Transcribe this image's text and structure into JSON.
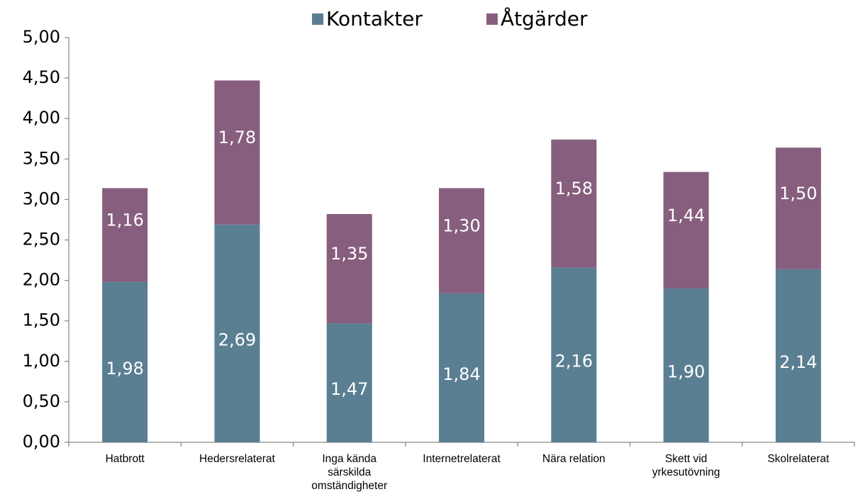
{
  "chart_data": {
    "type": "stacked_bar",
    "categories": [
      "Hatbrott",
      "Hedersrelaterat",
      "Inga kända\nsärskilda\nomständigheter",
      "Internetrelaterat",
      "Nära relation",
      "Skett vid\nyrkesutövning",
      "Skolrelaterat"
    ],
    "series": [
      {
        "name": "Kontakter",
        "color": "#5b7f92",
        "values": [
          1.98,
          2.69,
          1.47,
          1.84,
          2.16,
          1.9,
          2.14
        ],
        "value_labels": [
          "1,98",
          "2,69",
          "1,47",
          "1,84",
          "2,16",
          "1,90",
          "2,14"
        ]
      },
      {
        "name": "Åtgärder",
        "color": "#875e7e",
        "values": [
          1.16,
          1.78,
          1.35,
          1.3,
          1.58,
          1.44,
          1.5
        ],
        "value_labels": [
          "1,16",
          "1,78",
          "1,35",
          "1,30",
          "1,58",
          "1,44",
          "1,50"
        ]
      }
    ],
    "ylim": [
      0,
      5
    ],
    "yticks": [
      {
        "value": 0,
        "label": "0,00"
      },
      {
        "value": 0.5,
        "label": "0,50"
      },
      {
        "value": 1,
        "label": "1,00"
      },
      {
        "value": 1.5,
        "label": "1,50"
      },
      {
        "value": 2,
        "label": "2,00"
      },
      {
        "value": 2.5,
        "label": "2,50"
      },
      {
        "value": 3,
        "label": "3,00"
      },
      {
        "value": 3.5,
        "label": "3,50"
      },
      {
        "value": 4,
        "label": "4,00"
      },
      {
        "value": 4.5,
        "label": "4,50"
      },
      {
        "value": 5,
        "label": "5,00"
      }
    ],
    "legend": "top"
  }
}
